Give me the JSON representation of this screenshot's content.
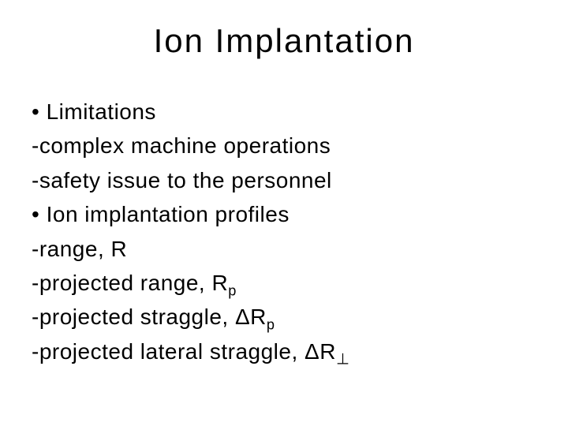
{
  "title": "Ion Implantation",
  "lines": {
    "l0": "Limitations",
    "l1": "complex machine operations",
    "l2": "safety issue to the personnel",
    "l3": "Ion implantation profiles",
    "l4": "range, R",
    "l5_prefix": "projected range, R",
    "l5_sub": "p",
    "l6_prefix": "projected straggle, ΔR",
    "l6_sub": "p",
    "l7_prefix": "projected lateral straggle, ΔR",
    "l7_sub": "⊥"
  }
}
